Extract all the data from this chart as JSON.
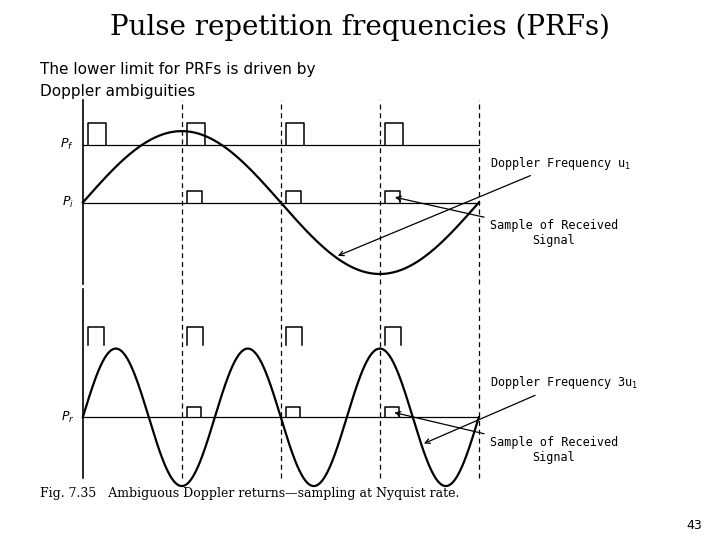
{
  "title": "Pulse repetition frequencies (PRFs)",
  "subtitle_line1": "The lower limit for PRFs is driven by",
  "subtitle_line2": "Doppler ambiguities",
  "fig_caption": "Fig. 7.35   Ambiguous Doppler returns—sampling at Nyquist rate.",
  "page_number": "43",
  "background_color": "#ffffff",
  "title_fontsize": 20,
  "subtitle_fontsize": 11,
  "caption_fontsize": 9,
  "annotation_fontsize": 8.5,
  "label_fontsize": 9,
  "doppler1_label": "Doppler Frequency u",
  "doppler2_label": "Doppler Frequency 3u",
  "sample_label": "Sample of Received\nSignal"
}
